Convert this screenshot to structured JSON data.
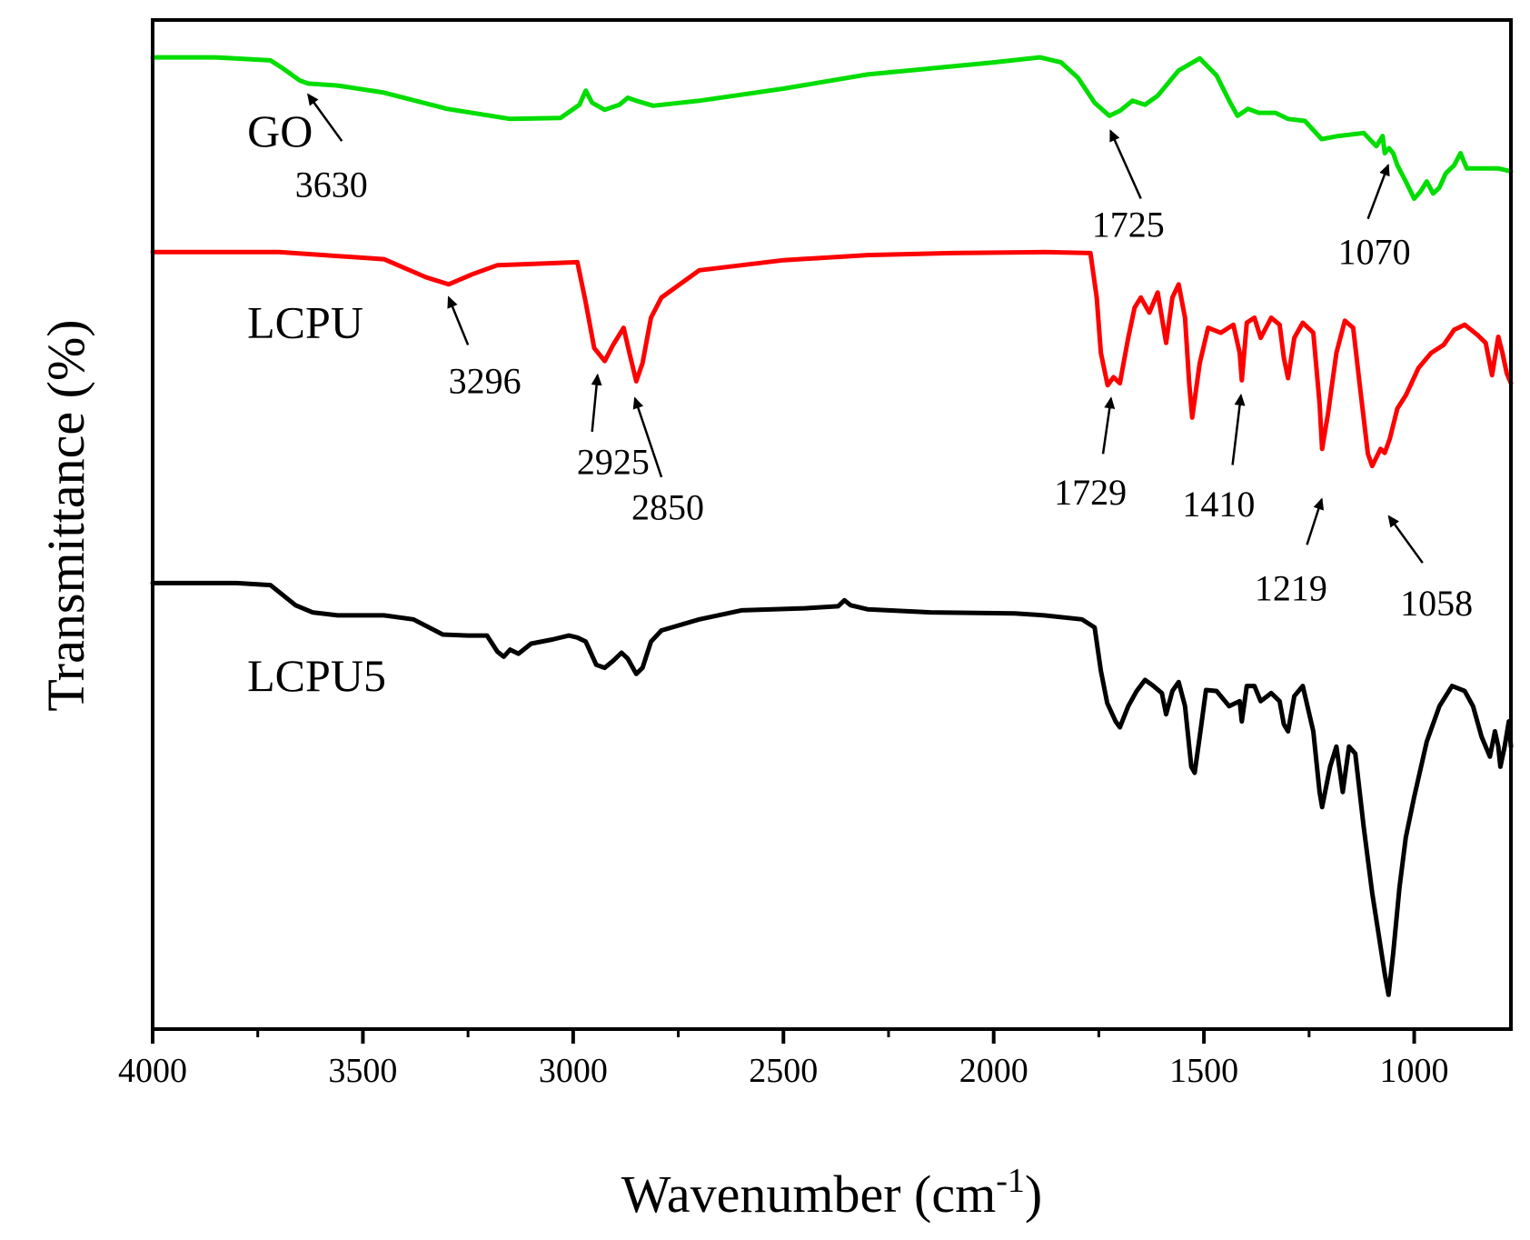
{
  "chart_data": {
    "type": "line",
    "xlabel": "Wavenumber (cm",
    "xlabel_superscript": "-1",
    "xlabel_close": ")",
    "ylabel": "Transmittance (%)",
    "xlim": [
      4000,
      770
    ],
    "x_reversed": true,
    "y_ticks_shown": false,
    "x_ticks": [
      4000,
      3500,
      3000,
      2500,
      2000,
      1500,
      1000
    ],
    "x_tick_labels": [
      "4000",
      "3500",
      "3000",
      "2500",
      "2000",
      "1500",
      "1000"
    ],
    "ylim": [
      0,
      100
    ],
    "series": [
      {
        "name": "GO",
        "color": "#00dd00",
        "points": [
          [
            4000,
            96.3
          ],
          [
            3850,
            96.3
          ],
          [
            3720,
            96.0
          ],
          [
            3690,
            95.2
          ],
          [
            3650,
            94.0
          ],
          [
            3630,
            93.7
          ],
          [
            3560,
            93.5
          ],
          [
            3450,
            92.8
          ],
          [
            3300,
            91.2
          ],
          [
            3150,
            90.2
          ],
          [
            3030,
            90.3
          ],
          [
            2985,
            91.6
          ],
          [
            2970,
            93.0
          ],
          [
            2955,
            91.8
          ],
          [
            2925,
            91.1
          ],
          [
            2890,
            91.6
          ],
          [
            2870,
            92.3
          ],
          [
            2850,
            92.0
          ],
          [
            2810,
            91.5
          ],
          [
            2700,
            92.0
          ],
          [
            2500,
            93.2
          ],
          [
            2400,
            93.9
          ],
          [
            2300,
            94.6
          ],
          [
            2150,
            95.2
          ],
          [
            2000,
            95.8
          ],
          [
            1890,
            96.3
          ],
          [
            1840,
            95.8
          ],
          [
            1800,
            94.3
          ],
          [
            1760,
            91.8
          ],
          [
            1725,
            90.5
          ],
          [
            1700,
            91.0
          ],
          [
            1670,
            92.0
          ],
          [
            1640,
            91.6
          ],
          [
            1610,
            92.5
          ],
          [
            1560,
            95.0
          ],
          [
            1510,
            96.2
          ],
          [
            1470,
            94.5
          ],
          [
            1440,
            92.0
          ],
          [
            1420,
            90.5
          ],
          [
            1395,
            91.2
          ],
          [
            1370,
            90.8
          ],
          [
            1330,
            90.8
          ],
          [
            1300,
            90.2
          ],
          [
            1260,
            90.0
          ],
          [
            1220,
            88.2
          ],
          [
            1180,
            88.5
          ],
          [
            1120,
            88.8
          ],
          [
            1090,
            87.5
          ],
          [
            1075,
            88.5
          ],
          [
            1070,
            86.8
          ],
          [
            1060,
            87.3
          ],
          [
            1050,
            86.8
          ],
          [
            1040,
            85.6
          ],
          [
            1020,
            84.0
          ],
          [
            1000,
            82.3
          ],
          [
            985,
            83.0
          ],
          [
            970,
            84.0
          ],
          [
            955,
            82.8
          ],
          [
            940,
            83.4
          ],
          [
            925,
            84.8
          ],
          [
            905,
            85.6
          ],
          [
            890,
            86.8
          ],
          [
            875,
            85.3
          ],
          [
            850,
            85.3
          ],
          [
            800,
            85.3
          ],
          [
            770,
            85.0
          ]
        ]
      },
      {
        "name": "LCPU",
        "color": "#ff0000",
        "points": [
          [
            4000,
            77.0
          ],
          [
            3700,
            77.0
          ],
          [
            3450,
            76.3
          ],
          [
            3350,
            74.5
          ],
          [
            3296,
            73.8
          ],
          [
            3240,
            74.8
          ],
          [
            3180,
            75.7
          ],
          [
            3050,
            75.9
          ],
          [
            2990,
            76.0
          ],
          [
            2970,
            72.0
          ],
          [
            2950,
            67.5
          ],
          [
            2925,
            66.2
          ],
          [
            2905,
            67.8
          ],
          [
            2880,
            69.5
          ],
          [
            2865,
            66.8
          ],
          [
            2850,
            64.2
          ],
          [
            2835,
            66.0
          ],
          [
            2815,
            70.5
          ],
          [
            2790,
            72.5
          ],
          [
            2700,
            75.2
          ],
          [
            2500,
            76.2
          ],
          [
            2300,
            76.7
          ],
          [
            2100,
            76.9
          ],
          [
            1880,
            77.0
          ],
          [
            1770,
            76.9
          ],
          [
            1755,
            72.5
          ],
          [
            1745,
            67.0
          ],
          [
            1729,
            63.8
          ],
          [
            1715,
            64.6
          ],
          [
            1700,
            64.0
          ],
          [
            1680,
            68.5
          ],
          [
            1665,
            71.5
          ],
          [
            1650,
            72.5
          ],
          [
            1630,
            71.0
          ],
          [
            1610,
            73.0
          ],
          [
            1590,
            68.0
          ],
          [
            1575,
            72.5
          ],
          [
            1560,
            73.8
          ],
          [
            1545,
            70.5
          ],
          [
            1535,
            64.0
          ],
          [
            1528,
            60.6
          ],
          [
            1510,
            66.0
          ],
          [
            1490,
            69.5
          ],
          [
            1460,
            69.0
          ],
          [
            1430,
            69.8
          ],
          [
            1415,
            67.0
          ],
          [
            1410,
            64.3
          ],
          [
            1398,
            70.0
          ],
          [
            1380,
            70.5
          ],
          [
            1365,
            68.5
          ],
          [
            1340,
            70.5
          ],
          [
            1320,
            69.8
          ],
          [
            1310,
            66.5
          ],
          [
            1300,
            64.5
          ],
          [
            1285,
            68.5
          ],
          [
            1265,
            70.0
          ],
          [
            1240,
            69.0
          ],
          [
            1225,
            62.0
          ],
          [
            1219,
            57.5
          ],
          [
            1205,
            61.0
          ],
          [
            1185,
            67.0
          ],
          [
            1165,
            70.2
          ],
          [
            1145,
            69.5
          ],
          [
            1130,
            64.0
          ],
          [
            1110,
            57.0
          ],
          [
            1100,
            55.8
          ],
          [
            1080,
            57.5
          ],
          [
            1070,
            57.1
          ],
          [
            1058,
            58.5
          ],
          [
            1040,
            61.5
          ],
          [
            1020,
            62.8
          ],
          [
            990,
            65.5
          ],
          [
            960,
            67.0
          ],
          [
            930,
            67.8
          ],
          [
            905,
            69.3
          ],
          [
            880,
            69.8
          ],
          [
            850,
            68.8
          ],
          [
            830,
            68.0
          ],
          [
            815,
            64.8
          ],
          [
            800,
            68.6
          ],
          [
            790,
            67.0
          ],
          [
            780,
            65.0
          ],
          [
            770,
            64.0
          ]
        ]
      },
      {
        "name": "LCPU5",
        "color": "#000000",
        "points": [
          [
            4000,
            44.2
          ],
          [
            3800,
            44.2
          ],
          [
            3720,
            44.0
          ],
          [
            3690,
            43.0
          ],
          [
            3660,
            42.0
          ],
          [
            3620,
            41.3
          ],
          [
            3560,
            41.0
          ],
          [
            3450,
            41.0
          ],
          [
            3380,
            40.6
          ],
          [
            3310,
            39.1
          ],
          [
            3250,
            39.0
          ],
          [
            3205,
            39.0
          ],
          [
            3180,
            37.4
          ],
          [
            3165,
            36.9
          ],
          [
            3150,
            37.6
          ],
          [
            3130,
            37.2
          ],
          [
            3100,
            38.2
          ],
          [
            3050,
            38.6
          ],
          [
            3010,
            39.0
          ],
          [
            2990,
            38.8
          ],
          [
            2970,
            38.4
          ],
          [
            2945,
            36.1
          ],
          [
            2925,
            35.8
          ],
          [
            2905,
            36.5
          ],
          [
            2885,
            37.3
          ],
          [
            2870,
            36.7
          ],
          [
            2850,
            35.2
          ],
          [
            2835,
            35.8
          ],
          [
            2815,
            38.4
          ],
          [
            2790,
            39.5
          ],
          [
            2700,
            40.6
          ],
          [
            2600,
            41.5
          ],
          [
            2450,
            41.7
          ],
          [
            2370,
            41.9
          ],
          [
            2355,
            42.5
          ],
          [
            2340,
            42.0
          ],
          [
            2300,
            41.6
          ],
          [
            2150,
            41.3
          ],
          [
            1950,
            41.2
          ],
          [
            1880,
            41.0
          ],
          [
            1790,
            40.6
          ],
          [
            1760,
            39.8
          ],
          [
            1745,
            35.5
          ],
          [
            1730,
            32.3
          ],
          [
            1710,
            30.5
          ],
          [
            1700,
            29.9
          ],
          [
            1680,
            32.0
          ],
          [
            1660,
            33.5
          ],
          [
            1640,
            34.6
          ],
          [
            1620,
            34.0
          ],
          [
            1600,
            33.3
          ],
          [
            1590,
            31.2
          ],
          [
            1575,
            33.5
          ],
          [
            1560,
            34.4
          ],
          [
            1545,
            32.0
          ],
          [
            1530,
            26.0
          ],
          [
            1522,
            25.4
          ],
          [
            1510,
            29.0
          ],
          [
            1495,
            33.6
          ],
          [
            1470,
            33.5
          ],
          [
            1440,
            32.0
          ],
          [
            1415,
            32.5
          ],
          [
            1410,
            30.5
          ],
          [
            1398,
            34.0
          ],
          [
            1380,
            34.0
          ],
          [
            1365,
            32.5
          ],
          [
            1340,
            33.3
          ],
          [
            1320,
            32.5
          ],
          [
            1310,
            30.2
          ],
          [
            1300,
            29.5
          ],
          [
            1285,
            33.0
          ],
          [
            1265,
            34.0
          ],
          [
            1240,
            29.5
          ],
          [
            1225,
            23.5
          ],
          [
            1219,
            22.0
          ],
          [
            1200,
            26.0
          ],
          [
            1185,
            28.0
          ],
          [
            1170,
            23.5
          ],
          [
            1155,
            28.0
          ],
          [
            1140,
            27.3
          ],
          [
            1120,
            20.0
          ],
          [
            1100,
            13.5
          ],
          [
            1085,
            9.5
          ],
          [
            1070,
            5.5
          ],
          [
            1061,
            3.4
          ],
          [
            1050,
            7.5
          ],
          [
            1035,
            14.0
          ],
          [
            1020,
            19.0
          ],
          [
            1000,
            23.0
          ],
          [
            970,
            28.5
          ],
          [
            940,
            32.0
          ],
          [
            910,
            34.0
          ],
          [
            880,
            33.5
          ],
          [
            860,
            32.0
          ],
          [
            840,
            29.0
          ],
          [
            820,
            27.0
          ],
          [
            808,
            29.5
          ],
          [
            800,
            28.0
          ],
          [
            795,
            26.0
          ],
          [
            785,
            28.0
          ],
          [
            775,
            30.5
          ],
          [
            770,
            28.0
          ]
        ]
      }
    ],
    "series_labels": [
      {
        "text": "GO",
        "x": 3775,
        "y": 87.5
      },
      {
        "text": "LCPU",
        "x": 3775,
        "y": 68.5
      },
      {
        "text": "LCPU5",
        "x": 3775,
        "y": 33.5
      }
    ],
    "annotations": [
      {
        "label": "3630",
        "label_x": 3575,
        "label_y": 82.5,
        "arrow_from": [
          3550,
          88.0
        ],
        "arrow_to": [
          3630,
          92.6
        ]
      },
      {
        "label": "3296",
        "label_x": 3210,
        "label_y": 63.0,
        "arrow_from": [
          3250,
          67.8
        ],
        "arrow_to": [
          3296,
          72.5
        ]
      },
      {
        "label": "2925",
        "label_x": 2905,
        "label_y": 55.0,
        "arrow_from": [
          2955,
          59.2
        ],
        "arrow_to": [
          2942,
          64.8
        ]
      },
      {
        "label": "2850",
        "label_x": 2775,
        "label_y": 50.5,
        "arrow_from": [
          2790,
          54.7
        ],
        "arrow_to": [
          2853,
          62.5
        ]
      },
      {
        "label": "1725",
        "label_x": 1680,
        "label_y": 78.5,
        "arrow_from": [
          1650,
          82.3
        ],
        "arrow_to": [
          1722,
          89.0
        ]
      },
      {
        "label": "1070",
        "label_x": 1095,
        "label_y": 75.8,
        "arrow_from": [
          1110,
          80.3
        ],
        "arrow_to": [
          1062,
          85.6
        ]
      },
      {
        "label": "1729",
        "label_x": 1770,
        "label_y": 52.0,
        "arrow_from": [
          1740,
          57.0
        ],
        "arrow_to": [
          1721,
          62.5
        ]
      },
      {
        "label": "1410",
        "label_x": 1465,
        "label_y": 50.8,
        "arrow_from": [
          1432,
          55.9
        ],
        "arrow_to": [
          1412,
          62.8
        ]
      },
      {
        "label": "1219",
        "label_x": 1293,
        "label_y": 42.5,
        "arrow_from": [
          1255,
          48.0
        ],
        "arrow_to": [
          1220,
          52.5
        ]
      },
      {
        "label": "1058",
        "label_x": 947,
        "label_y": 41.0,
        "arrow_from": [
          980,
          46.2
        ],
        "arrow_to": [
          1060,
          50.8
        ]
      }
    ]
  }
}
